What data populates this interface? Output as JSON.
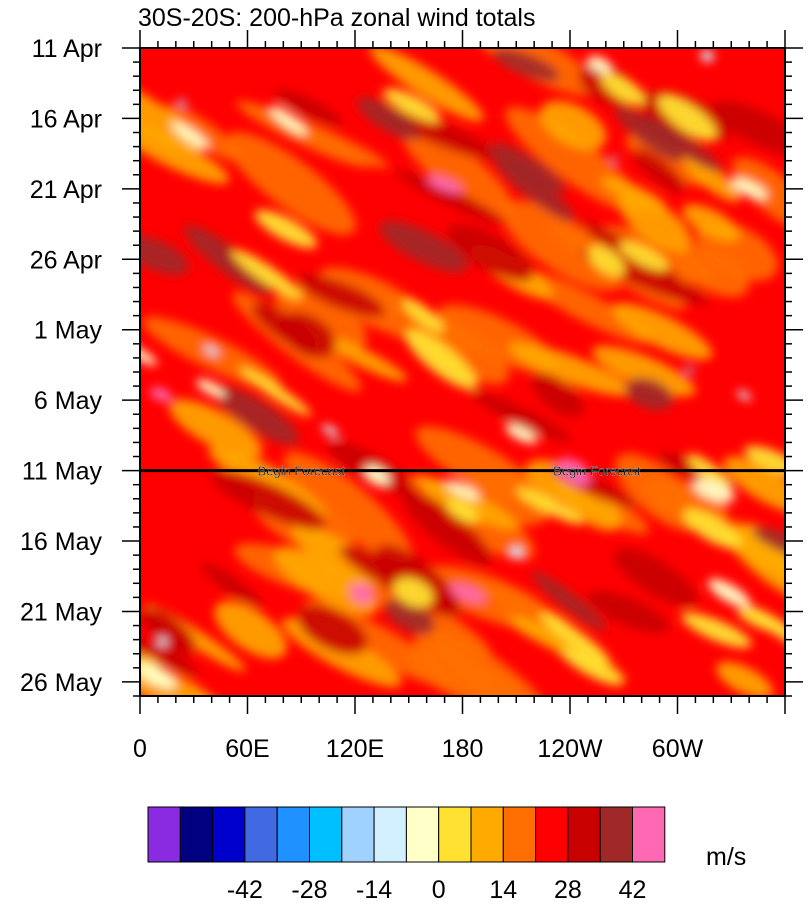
{
  "chart_data": {
    "type": "heatmap",
    "title": "30S-20S: 200-hPa zonal wind totals",
    "xlabel": "",
    "ylabel": "",
    "x_tick_labels": [
      "0",
      "60E",
      "120E",
      "180",
      "120W",
      "60W"
    ],
    "x_ticks_deg_east": [
      0,
      60,
      120,
      180,
      240,
      300
    ],
    "x_range_deg_east": [
      0,
      360
    ],
    "y_tick_labels": [
      "11 Apr",
      "16 Apr",
      "21 Apr",
      "26 Apr",
      "1 May",
      "6 May",
      "11 May",
      "16 May",
      "21 May",
      "26 May"
    ],
    "y_ticks": [
      "2000-04-11",
      "2000-04-16",
      "2000-04-21",
      "2000-04-26",
      "2000-05-01",
      "2000-05-06",
      "2000-05-11",
      "2000-05-16",
      "2000-05-21",
      "2000-05-26"
    ],
    "y_range": [
      "2000-04-11",
      "2000-05-27"
    ],
    "y_direction": "time increases downward",
    "forecast_start": "2000-05-11",
    "forecast_label": "Begin Forecast",
    "forecast_label_positions_deg_east": [
      90,
      255
    ],
    "colorbar": {
      "unit": "m/s",
      "tick_labels": [
        "-42",
        "-28",
        "-14",
        "0",
        "14",
        "28",
        "42"
      ],
      "levels": [
        -56,
        -49,
        -42,
        -35,
        -28,
        -21,
        -14,
        -7,
        0,
        7,
        14,
        21,
        28,
        35,
        42,
        49
      ],
      "colors": [
        "#8a2be2",
        "#000080",
        "#0000cd",
        "#4169e1",
        "#1e90ff",
        "#00bfff",
        "#a0d2ff",
        "#d2f0ff",
        "#ffffc8",
        "#ffe132",
        "#ffaa00",
        "#ff6e00",
        "#ff0000",
        "#c80000",
        "#a02828",
        "#ff69b4"
      ]
    },
    "values_note": "Field dominated by 14-42 m/s westerlies; bands of strong wind tilt eastward with time; weakest winds (near 0 m/s) near 180-120W."
  }
}
